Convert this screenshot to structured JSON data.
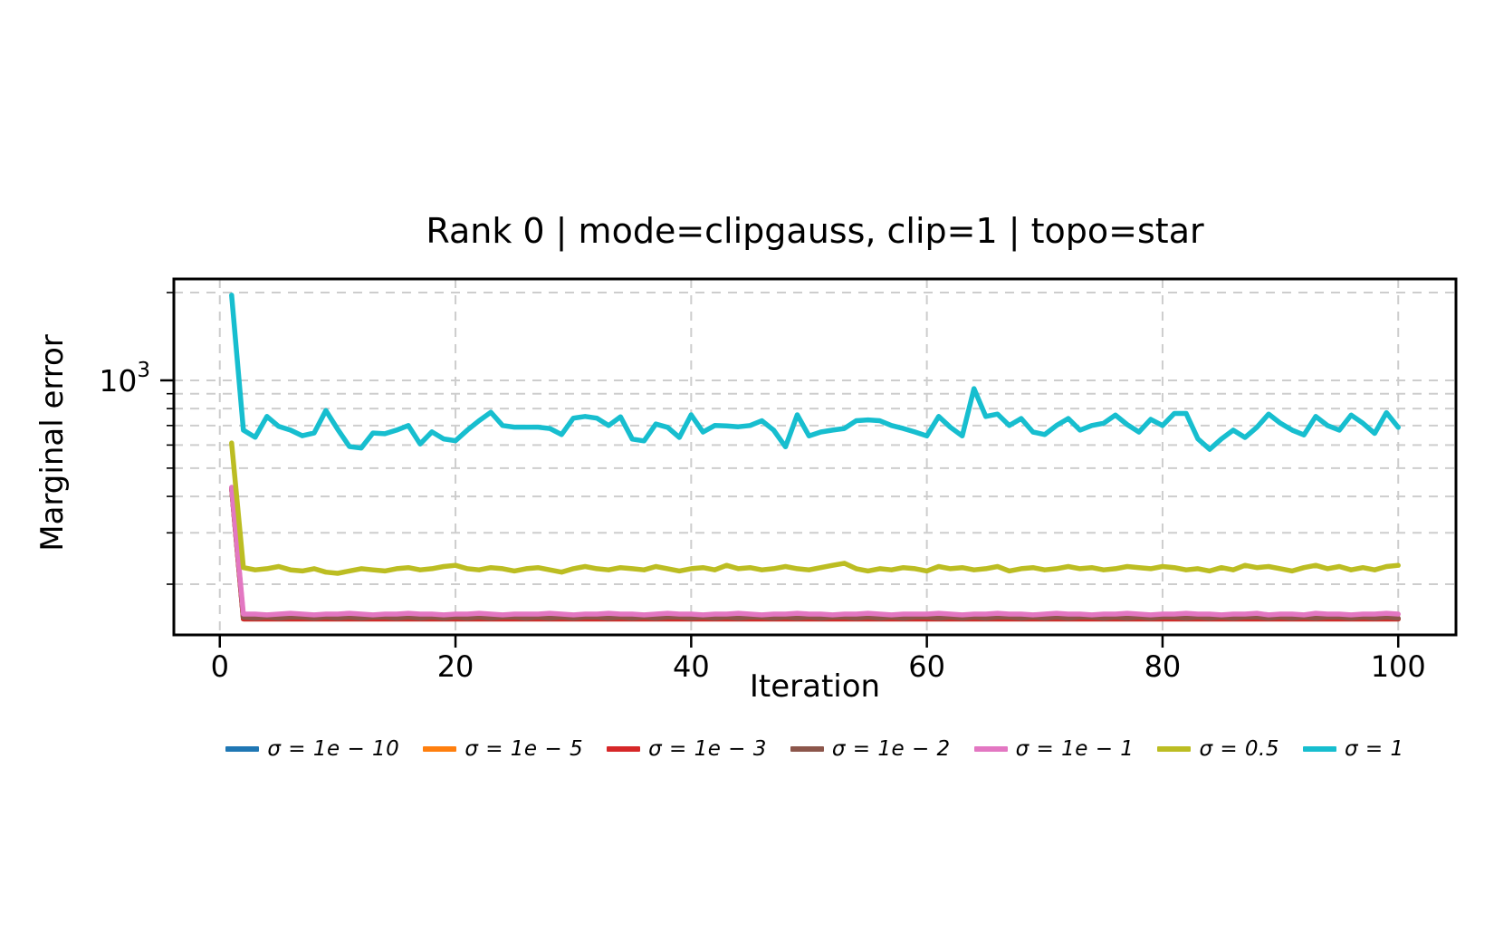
{
  "figure": {
    "title": "Rank 0 | mode=clipgauss, clip=1 | topo=star"
  },
  "chart_data": {
    "type": "line",
    "title": "Rank 0 | mode=clipgauss, clip=1 | topo=star",
    "xlabel": "Iteration",
    "ylabel": "Marginal error",
    "xscale": "linear",
    "yscale": "log",
    "xlim": [
      -3.9,
      104.9
    ],
    "ylim": [
      134,
      2227
    ],
    "x_start": 1,
    "x_ticks": [
      0,
      20,
      40,
      60,
      80,
      100
    ],
    "y_major_ticks": [
      {
        "value": 1000,
        "base": "10",
        "exp": "3"
      }
    ],
    "y_minor_ticks": [
      2000,
      900,
      800,
      700,
      600,
      500,
      400,
      300,
      200
    ],
    "grid": {
      "which": "both",
      "dashed": true,
      "color": "#cdcdcd"
    },
    "legend_position": "bottom-center",
    "series": [
      {
        "name": "σ = 1e − 10",
        "color": "#1f77b4",
        "values": [
          427,
          152,
          152,
          152,
          152,
          152,
          152,
          152,
          152,
          152,
          152,
          152,
          152,
          152,
          152,
          152,
          152,
          152,
          152,
          152,
          152,
          152,
          152,
          152,
          152,
          152,
          152,
          152,
          152,
          152,
          152,
          152,
          152,
          152,
          152,
          152,
          152,
          152,
          152,
          152,
          152,
          152,
          152,
          152,
          152,
          152,
          152,
          152,
          152,
          152,
          152,
          152,
          152,
          152,
          152,
          152,
          152,
          152,
          152,
          152,
          152,
          152,
          152,
          152,
          152,
          152,
          152,
          152,
          152,
          152,
          152,
          152,
          152,
          152,
          152,
          152,
          152,
          152,
          152,
          152,
          152,
          152,
          152,
          152,
          152,
          152,
          152,
          152,
          152,
          152,
          152,
          152,
          152,
          152,
          152,
          152,
          152,
          152,
          152,
          152
        ]
      },
      {
        "name": "σ = 1e − 5",
        "color": "#ff7f0e",
        "values": [
          427,
          152,
          152,
          152,
          152,
          152,
          152,
          152,
          152,
          152,
          152,
          152,
          152,
          152,
          152,
          152,
          152,
          152,
          152,
          152,
          152,
          152,
          152,
          152,
          152,
          152,
          152,
          152,
          152,
          152,
          152,
          152,
          152,
          152,
          152,
          152,
          152,
          152,
          152,
          152,
          152,
          152,
          152,
          152,
          152,
          152,
          152,
          152,
          152,
          152,
          152,
          152,
          152,
          152,
          152,
          152,
          152,
          152,
          152,
          152,
          152,
          152,
          152,
          152,
          152,
          152,
          152,
          152,
          152,
          152,
          152,
          152,
          152,
          152,
          152,
          152,
          152,
          152,
          152,
          152,
          152,
          152,
          152,
          152,
          152,
          152,
          152,
          152,
          152,
          152,
          152,
          152,
          152,
          152,
          152,
          152,
          152,
          152,
          152,
          152
        ]
      },
      {
        "name": "σ = 1e − 3",
        "color": "#d62728",
        "values": [
          427,
          152,
          152,
          152,
          152,
          152,
          152,
          152,
          152,
          152,
          152,
          152,
          152,
          152,
          152,
          152,
          152,
          152,
          152,
          152,
          152,
          152,
          152,
          152,
          152,
          152,
          152,
          152,
          152,
          152,
          152,
          152,
          152,
          152,
          152,
          152,
          152,
          152,
          152,
          152,
          152,
          152,
          152,
          152,
          152,
          152,
          152,
          152,
          152,
          152,
          152,
          152,
          152,
          152,
          152,
          152,
          152,
          152,
          152,
          152,
          152,
          152,
          152,
          152,
          152,
          152,
          152,
          152,
          152,
          152,
          152,
          152,
          152,
          152,
          152,
          152,
          152,
          152,
          152,
          152,
          152,
          152,
          152,
          152,
          152,
          152,
          152,
          152,
          152,
          152,
          152,
          152,
          152,
          152,
          152,
          152,
          152,
          152,
          152,
          152
        ]
      },
      {
        "name": "σ = 1e − 2",
        "color": "#8c564b",
        "values": [
          428,
          154,
          153,
          154,
          153,
          154,
          154,
          153,
          154,
          153,
          154,
          153,
          154,
          154,
          153,
          154,
          153,
          154,
          153,
          154,
          153,
          154,
          153,
          154,
          154,
          153,
          154,
          153,
          154,
          153,
          154,
          154,
          153,
          154,
          153,
          154,
          153,
          154,
          154,
          153,
          154,
          153,
          154,
          153,
          154,
          154,
          153,
          154,
          153,
          154,
          153,
          154,
          154,
          153,
          154,
          153,
          154,
          153,
          154,
          154,
          153,
          154,
          153,
          154,
          153,
          154,
          154,
          153,
          154,
          153,
          154,
          153,
          154,
          154,
          153,
          154,
          153,
          154,
          153,
          154,
          154,
          153,
          154,
          153,
          154,
          153,
          154,
          154,
          153,
          154,
          153,
          154,
          153,
          154,
          154,
          153,
          154,
          153,
          154,
          153
        ]
      },
      {
        "name": "σ = 1e − 1",
        "color": "#e377c2",
        "values": [
          430,
          158,
          158,
          157,
          158,
          159,
          158,
          157,
          158,
          158,
          159,
          158,
          157,
          158,
          158,
          159,
          158,
          158,
          157,
          158,
          158,
          159,
          158,
          157,
          158,
          158,
          158,
          159,
          158,
          157,
          158,
          158,
          159,
          158,
          158,
          157,
          158,
          159,
          158,
          158,
          157,
          158,
          158,
          159,
          158,
          157,
          158,
          158,
          159,
          158,
          158,
          157,
          158,
          158,
          159,
          158,
          157,
          158,
          158,
          158,
          159,
          158,
          157,
          158,
          158,
          159,
          158,
          158,
          157,
          158,
          159,
          158,
          158,
          157,
          158,
          158,
          159,
          158,
          157,
          158,
          158,
          159,
          158,
          158,
          157,
          158,
          158,
          159,
          157,
          158,
          158,
          157,
          159,
          158,
          158,
          157,
          158,
          158,
          159,
          158
        ]
      },
      {
        "name": "σ = 0.5",
        "color": "#bcbd22",
        "values": [
          610,
          228,
          224,
          226,
          230,
          224,
          222,
          226,
          220,
          218,
          222,
          226,
          224,
          222,
          226,
          228,
          224,
          226,
          230,
          232,
          226,
          224,
          228,
          226,
          222,
          226,
          228,
          224,
          220,
          226,
          230,
          226,
          224,
          228,
          226,
          224,
          230,
          226,
          222,
          226,
          228,
          224,
          232,
          226,
          228,
          224,
          226,
          230,
          226,
          224,
          228,
          232,
          236,
          226,
          222,
          226,
          224,
          228,
          226,
          222,
          230,
          226,
          228,
          224,
          226,
          230,
          222,
          226,
          228,
          224,
          226,
          230,
          226,
          228,
          224,
          226,
          230,
          228,
          226,
          230,
          228,
          224,
          226,
          222,
          228,
          224,
          232,
          228,
          230,
          226,
          222,
          228,
          232,
          226,
          230,
          224,
          228,
          224,
          230,
          232
        ]
      },
      {
        "name": "σ = 1",
        "color": "#17becf",
        "values": [
          1960,
          675,
          638,
          752,
          695,
          675,
          646,
          660,
          788,
          680,
          593,
          586,
          660,
          656,
          675,
          700,
          605,
          666,
          630,
          621,
          675,
          727,
          777,
          700,
          691,
          691,
          691,
          684,
          652,
          742,
          752,
          742,
          700,
          750,
          629,
          620,
          708,
          690,
          637,
          762,
          665,
          700,
          698,
          693,
          700,
          727,
          675,
          592,
          762,
          645,
          665,
          675,
          684,
          727,
          732,
          727,
          700,
          684,
          665,
          645,
          752,
          690,
          645,
          937,
          752,
          766,
          700,
          740,
          665,
          652,
          700,
          740,
          675,
          700,
          713,
          760,
          705,
          665,
          735,
          700,
          770,
          770,
          630,
          580,
          630,
          675,
          637,
          690,
          766,
          713,
          675,
          650,
          752,
          700,
          675,
          760,
          713,
          658,
          775,
          690
        ]
      }
    ]
  }
}
